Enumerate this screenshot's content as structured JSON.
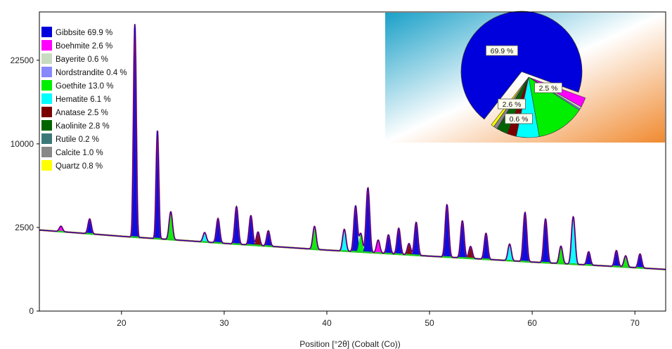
{
  "chart_data": {
    "type": "line",
    "title": "",
    "xlabel": "Position [°2θ] (Cobalt (Co))",
    "ylabel": "",
    "xlim": [
      12,
      73
    ],
    "y_ticks": [
      0,
      2500,
      10000,
      22500
    ],
    "y_tick_labels": [
      "0",
      "2500",
      "10000",
      "22500"
    ],
    "x_ticks": [
      20,
      30,
      40,
      50,
      60,
      70
    ],
    "x_tick_labels": [
      "20",
      "30",
      "40",
      "50",
      "60",
      "70"
    ],
    "y_scale": "sqrt",
    "ylim": [
      0,
      32000
    ],
    "grid": false,
    "legend_position": "top-left",
    "background": {
      "x": [
        12,
        20,
        30,
        40,
        50,
        60,
        73
      ],
      "y": [
        2350,
        2000,
        1640,
        1330,
        1080,
        860,
        620
      ]
    },
    "observed_trace_color": "#e02020",
    "calculated_trace_color": "#0000dd",
    "peaks": [
      {
        "pos": 14.1,
        "height": 320,
        "phase": "Boehmite"
      },
      {
        "pos": 16.9,
        "height": 900,
        "phase": "Gibbsite"
      },
      {
        "pos": 21.3,
        "height": 27500,
        "phase": "Gibbsite"
      },
      {
        "pos": 23.5,
        "height": 9800,
        "phase": "Gibbsite"
      },
      {
        "pos": 24.8,
        "height": 1700,
        "phase": "Goethite"
      },
      {
        "pos": 28.1,
        "height": 500,
        "phase": "Hematite"
      },
      {
        "pos": 29.4,
        "height": 1400,
        "phase": "Gibbsite"
      },
      {
        "pos": 31.2,
        "height": 2300,
        "phase": "Gibbsite"
      },
      {
        "pos": 32.6,
        "height": 1700,
        "phase": "Gibbsite"
      },
      {
        "pos": 33.3,
        "height": 700,
        "phase": "Anatase"
      },
      {
        "pos": 34.3,
        "height": 800,
        "phase": "Gibbsite"
      },
      {
        "pos": 38.8,
        "height": 1200,
        "phase": "Goethite"
      },
      {
        "pos": 41.7,
        "height": 1100,
        "phase": "Hematite"
      },
      {
        "pos": 42.8,
        "height": 2700,
        "phase": "Gibbsite"
      },
      {
        "pos": 43.3,
        "height": 900,
        "phase": "Goethite"
      },
      {
        "pos": 44.0,
        "height": 4200,
        "phase": "Gibbsite"
      },
      {
        "pos": 45.0,
        "height": 600,
        "phase": "Boehmite"
      },
      {
        "pos": 46.0,
        "height": 900,
        "phase": "Gibbsite"
      },
      {
        "pos": 47.0,
        "height": 1300,
        "phase": "Gibbsite"
      },
      {
        "pos": 48.0,
        "height": 500,
        "phase": "Anatase"
      },
      {
        "pos": 48.7,
        "height": 1700,
        "phase": "Gibbsite"
      },
      {
        "pos": 51.7,
        "height": 3000,
        "phase": "Gibbsite"
      },
      {
        "pos": 53.2,
        "height": 1900,
        "phase": "Gibbsite"
      },
      {
        "pos": 54.0,
        "height": 500,
        "phase": "Anatase"
      },
      {
        "pos": 55.5,
        "height": 1200,
        "phase": "Gibbsite"
      },
      {
        "pos": 57.8,
        "height": 700,
        "phase": "Hematite"
      },
      {
        "pos": 59.3,
        "height": 2600,
        "phase": "Gibbsite"
      },
      {
        "pos": 61.3,
        "height": 2200,
        "phase": "Gibbsite"
      },
      {
        "pos": 62.8,
        "height": 700,
        "phase": "Goethite"
      },
      {
        "pos": 64.0,
        "height": 2400,
        "phase": "Hematite"
      },
      {
        "pos": 65.5,
        "height": 500,
        "phase": "Gibbsite"
      },
      {
        "pos": 68.2,
        "height": 600,
        "phase": "Gibbsite"
      },
      {
        "pos": 69.1,
        "height": 400,
        "phase": "Goethite"
      },
      {
        "pos": 70.5,
        "height": 500,
        "phase": "Gibbsite"
      }
    ],
    "legend": [
      {
        "label": "Gibbsite 69.9 %",
        "color": "#0000dd"
      },
      {
        "label": "Boehmite 2.6 %",
        "color": "#ff00ff"
      },
      {
        "label": "Bayerite 0.6 %",
        "color": "#c8dcc0"
      },
      {
        "label": "Nordstrandite 0.4 %",
        "color": "#8888ff"
      },
      {
        "label": "Goethite 13.0 %",
        "color": "#00ee00"
      },
      {
        "label": "Hematite 6.1 %",
        "color": "#00ffff"
      },
      {
        "label": "Anatase 2.5 %",
        "color": "#7a0000"
      },
      {
        "label": "Kaolinite 2.8 %",
        "color": "#006400"
      },
      {
        "label": "Rutile 0.2 %",
        "color": "#3c7878"
      },
      {
        "label": "Calcite 1.0 %",
        "color": "#888888"
      },
      {
        "label": "Quartz 0.8 %",
        "color": "#ffff00"
      }
    ],
    "pie": {
      "type": "pie",
      "slices": [
        {
          "name": "Gibbsite",
          "value": 69.9,
          "color": "#0000dd",
          "exploded": false,
          "label": "69.9 %"
        },
        {
          "name": "Boehmite",
          "value": 2.6,
          "color": "#ff00ff",
          "exploded": true,
          "label": "2.6 %"
        },
        {
          "name": "Bayerite",
          "value": 0.6,
          "color": "#c8dcc0",
          "exploded": true,
          "label": "0.6 %"
        },
        {
          "name": "Nordstrandite",
          "value": 0.4,
          "color": "#8888ff",
          "exploded": true,
          "label": ""
        },
        {
          "name": "Goethite",
          "value": 13.0,
          "color": "#00ee00",
          "exploded": true,
          "label": ""
        },
        {
          "name": "Hematite",
          "value": 6.1,
          "color": "#00ffff",
          "exploded": true,
          "label": ""
        },
        {
          "name": "Anatase",
          "value": 2.5,
          "color": "#7a0000",
          "exploded": true,
          "label": "2.5 %"
        },
        {
          "name": "Kaolinite",
          "value": 2.8,
          "color": "#006400",
          "exploded": true,
          "label": ""
        },
        {
          "name": "Rutile",
          "value": 0.2,
          "color": "#3c7878",
          "exploded": true,
          "label": ""
        },
        {
          "name": "Calcite",
          "value": 1.0,
          "color": "#888888",
          "exploded": true,
          "label": ""
        },
        {
          "name": "Quartz",
          "value": 0.8,
          "color": "#ffff00",
          "exploded": true,
          "label": ""
        }
      ],
      "inset_gradient": [
        "#1aa0c8",
        "#ffffff",
        "#f08a30"
      ]
    }
  }
}
